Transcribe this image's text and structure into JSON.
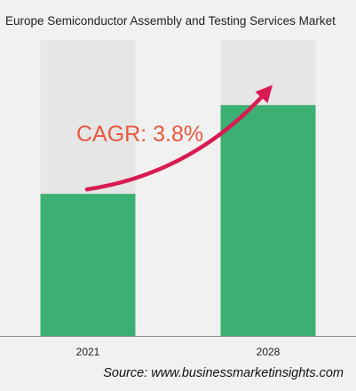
{
  "chart_data": {
    "type": "bar",
    "title": "Europe Semiconductor Assembly and Testing Services Market",
    "categories": [
      "2021",
      "2028"
    ],
    "values": [
      48,
      78
    ],
    "ylim": [
      0,
      100
    ],
    "xlabel": "",
    "ylabel": "",
    "grid": false,
    "annotation": "CAGR: 3.8%",
    "colors": {
      "bar": "#3caf72",
      "bar_track": "#e6e6e6",
      "arrow": "#d81b51",
      "annotation": "#e8573e",
      "axis": "#888888"
    }
  },
  "source": "Source: www.businessmarketinsights.com"
}
